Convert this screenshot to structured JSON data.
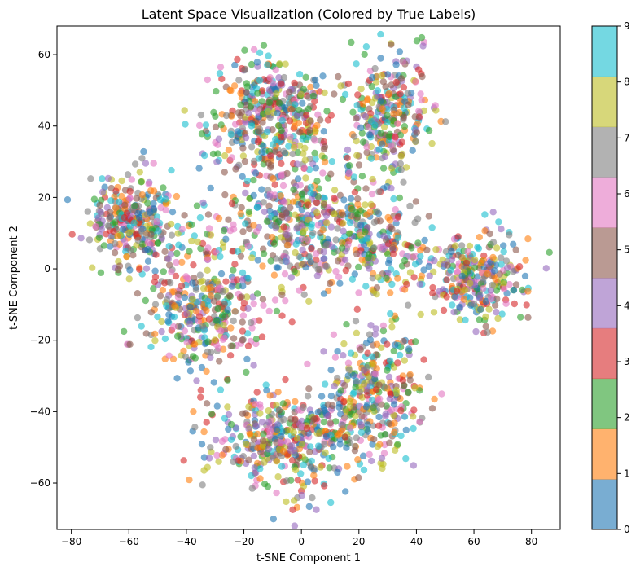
{
  "chart_data": {
    "type": "scatter",
    "title": "Latent Space Visualization (Colored by True Labels)",
    "xlabel": "t-SNE Component 1",
    "ylabel": "t-SNE Component 2",
    "xlim": [
      -85,
      90
    ],
    "ylim": [
      -73,
      68
    ],
    "xticks": [
      -80,
      -60,
      -40,
      -20,
      0,
      20,
      40,
      60,
      80
    ],
    "yticks": [
      -60,
      -40,
      -20,
      0,
      20,
      40,
      60
    ],
    "grid": false,
    "point_alpha": 0.6,
    "colorbar": {
      "label": "",
      "range": [
        0,
        9
      ],
      "ticks": [
        0,
        1,
        2,
        3,
        4,
        5,
        6,
        7,
        8,
        9
      ],
      "colors": [
        "#1f77b4",
        "#ff7f0e",
        "#2ca02c",
        "#d62728",
        "#9467bd",
        "#8c564b",
        "#e377c2",
        "#7f7f7f",
        "#bcbd22",
        "#17becf"
      ]
    },
    "clusters": [
      {
        "center": [
          -58,
          14
        ],
        "spread": [
          7.5,
          6.5
        ],
        "count": 300
      },
      {
        "center": [
          -35,
          -12
        ],
        "spread": [
          10,
          8
        ],
        "count": 330
      },
      {
        "center": [
          -10,
          43
        ],
        "spread": [
          11,
          8.5
        ],
        "count": 430
      },
      {
        "center": [
          30,
          42
        ],
        "spread": [
          7,
          9
        ],
        "count": 280
      },
      {
        "center": [
          0,
          12
        ],
        "spread": [
          17,
          9
        ],
        "count": 470
      },
      {
        "center": [
          60,
          -3
        ],
        "spread": [
          9,
          6
        ],
        "count": 300
      },
      {
        "center": [
          25,
          -35
        ],
        "spread": [
          8,
          9
        ],
        "count": 310
      },
      {
        "center": [
          -5,
          -48
        ],
        "spread": [
          13,
          7
        ],
        "count": 430
      },
      {
        "center": [
          28,
          5
        ],
        "spread": [
          8,
          6
        ],
        "count": 140
      }
    ]
  }
}
